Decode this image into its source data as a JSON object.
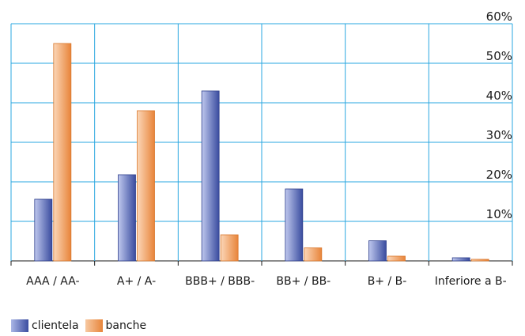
{
  "chart_data": {
    "type": "bar",
    "categories": [
      "AAA / AA-",
      "A+ / A-",
      "BBB+ / BBB-",
      "BB+ / BB-",
      "B+ / B-",
      "Inferiore a B-"
    ],
    "series": [
      {
        "name": "clientela",
        "values": [
          15.6,
          21.8,
          43.0,
          18.2,
          5.1,
          0.8
        ],
        "color": "#4b5fae"
      },
      {
        "name": "banche",
        "values": [
          55.0,
          38.0,
          6.6,
          3.3,
          1.2,
          0.4
        ],
        "color": "#eb8f45"
      }
    ],
    "ylim": [
      0,
      60
    ],
    "yticks": [
      "10%",
      "20%",
      "30%",
      "40%",
      "50%",
      "60%"
    ],
    "grid": true,
    "grid_color": "#2aa7e0",
    "legend_position": "bottom-left"
  }
}
